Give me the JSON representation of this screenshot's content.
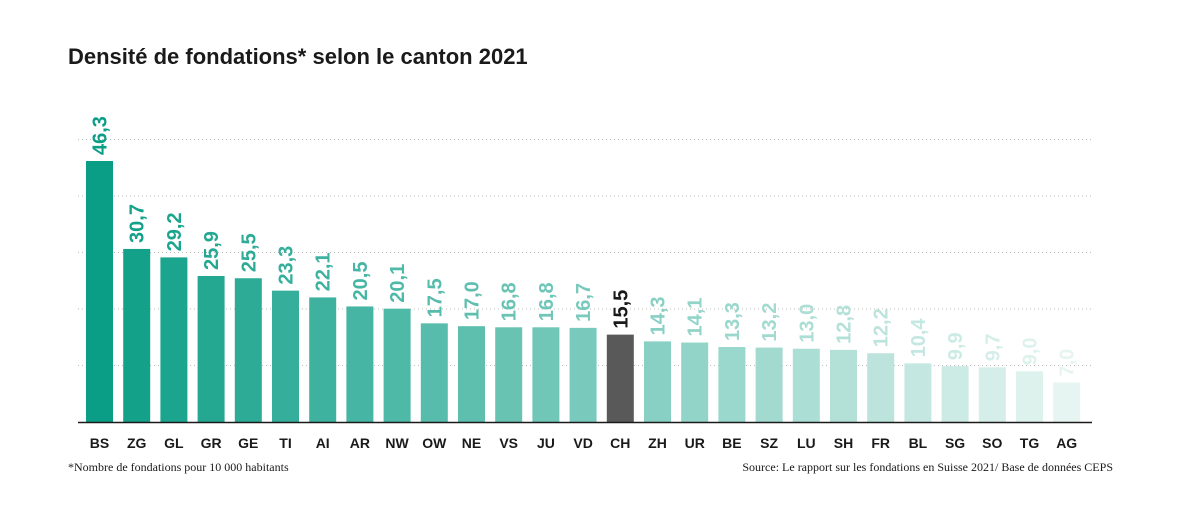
{
  "chart_data": {
    "type": "bar",
    "title": "Densité de fondations* selon le canton 2021",
    "categories": [
      "BS",
      "ZG",
      "GL",
      "GR",
      "GE",
      "TI",
      "AI",
      "AR",
      "NW",
      "OW",
      "NE",
      "VS",
      "JU",
      "VD",
      "CH",
      "ZH",
      "UR",
      "BE",
      "SZ",
      "LU",
      "SH",
      "FR",
      "BL",
      "SG",
      "SO",
      "TG",
      "AG"
    ],
    "values": [
      46.3,
      30.7,
      29.2,
      25.9,
      25.5,
      23.3,
      22.1,
      20.5,
      20.1,
      17.5,
      17.0,
      16.8,
      16.8,
      16.7,
      15.5,
      14.3,
      14.1,
      13.3,
      13.2,
      13.0,
      12.8,
      12.2,
      10.4,
      9.9,
      9.7,
      9.0,
      7.0
    ],
    "value_labels": [
      "46,3",
      "30,7",
      "29,2",
      "25,9",
      "25,5",
      "23,3",
      "22,1",
      "20,5",
      "20,1",
      "17,5",
      "17,0",
      "16,8",
      "16,8",
      "16,7",
      "15,5",
      "14,3",
      "14,1",
      "13,3",
      "13,2",
      "13,0",
      "12,8",
      "12,2",
      "10,4",
      "9,9",
      "9,7",
      "9,0",
      "7,0"
    ],
    "highlight": "CH",
    "xlabel": "",
    "ylabel": "",
    "ylim": [
      0,
      46.3
    ],
    "grid": "dotted horizontal lines",
    "colors": {
      "gradient_start": "#0b9e86",
      "gradient_end": "#e6f5f1",
      "highlight": "#595959",
      "highlight_label": "#1a1a1a",
      "baseline": "#1a1a1a",
      "grid": "#bbbbbb"
    }
  },
  "footnote": "*Nombre de fondations pour 10 000 habitants",
  "source": "Source: Le rapport sur les fondations en Suisse 2021/ Base de données CEPS"
}
